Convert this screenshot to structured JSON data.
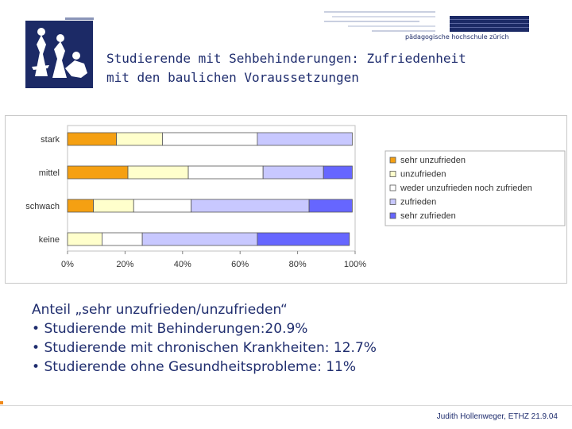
{
  "header": {
    "institution": "pädagogische hochschule zürich",
    "title": "Studierende mit Sehbehinderungen: Zufriedenheit\nmit den baulichen Voraussetzungen"
  },
  "chart_data": {
    "type": "bar",
    "stacked": true,
    "orientation": "horizontal",
    "categories": [
      "stark",
      "mittel",
      "schwach",
      "keine"
    ],
    "series": [
      {
        "name": "sehr unzufrieden",
        "color": "#f5a012",
        "values": [
          17,
          21,
          9,
          0
        ]
      },
      {
        "name": "unzufrieden",
        "color": "#ffffcc",
        "values": [
          16,
          21,
          14,
          12
        ]
      },
      {
        "name": "weder unzufrieden noch zufrieden",
        "color": "#ffffff",
        "values": [
          33,
          26,
          20,
          14
        ]
      },
      {
        "name": "zufrieden",
        "color": "#c8c8ff",
        "values": [
          33,
          21,
          41,
          40
        ]
      },
      {
        "name": "sehr zufrieden",
        "color": "#6666ff",
        "values": [
          0,
          10,
          15,
          32
        ]
      }
    ],
    "x_ticks": [
      "0%",
      "20%",
      "40%",
      "60%",
      "80%",
      "100%"
    ],
    "xlim": [
      0,
      100
    ],
    "legend_position": "right",
    "grid": false
  },
  "summary": {
    "heading": "Anteil „sehr unzufrieden/unzufrieden“",
    "items": [
      "Studierende mit Behinderungen:20.9%",
      "Studierende mit chronischen Krankheiten: 12.7%",
      "Studierende ohne Gesundheitsprobleme: 11%"
    ],
    "bullet": "•"
  },
  "footer": {
    "text": "Judith Hollenweger, ETHZ  21.9.04"
  },
  "colors": {
    "navy": "#1f2d6e",
    "logo_bg": "#1c2a66",
    "accent_orange": "#f08a1c"
  }
}
